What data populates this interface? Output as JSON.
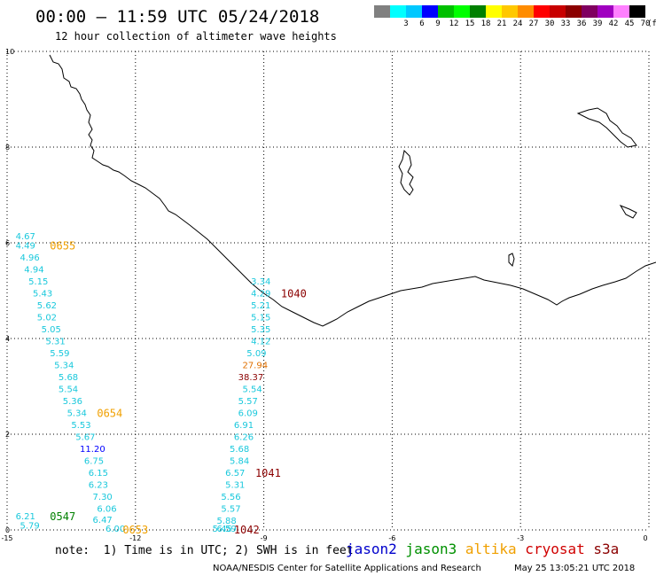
{
  "header": {
    "title": "00:00 – 11:59 UTC 05/24/2018",
    "subtitle": "12 hour collection of altimeter wave heights"
  },
  "color_scale": {
    "unit": "(ft)",
    "bins": [
      {
        "color": "#808080",
        "label": ""
      },
      {
        "color": "#00ffff",
        "label": "3"
      },
      {
        "color": "#00c8ff",
        "label": "6"
      },
      {
        "color": "#0000ff",
        "label": "9"
      },
      {
        "color": "#00c000",
        "label": "12"
      },
      {
        "color": "#00ff00",
        "label": "15"
      },
      {
        "color": "#008000",
        "label": "18"
      },
      {
        "color": "#ffff00",
        "label": "21"
      },
      {
        "color": "#ffc800",
        "label": "24"
      },
      {
        "color": "#ff8c00",
        "label": "27"
      },
      {
        "color": "#ff0000",
        "label": "30"
      },
      {
        "color": "#c80000",
        "label": "33"
      },
      {
        "color": "#8b0000",
        "label": "36"
      },
      {
        "color": "#800060",
        "label": "39"
      },
      {
        "color": "#a000c0",
        "label": "42"
      },
      {
        "color": "#ff80ff",
        "label": "45"
      },
      {
        "color": "#000000",
        "label": "70"
      }
    ]
  },
  "map": {
    "lon_range": [
      -15,
      0
    ],
    "lat_range": [
      0,
      10
    ],
    "x_ticks": [
      "-15",
      "-12",
      "-9",
      "-6",
      "-3",
      "0"
    ],
    "y_ticks": [
      "0",
      "2",
      "4",
      "6",
      "8",
      "10"
    ]
  },
  "wave_color": "#19c8dc",
  "tracks": [
    {
      "lon": -14.8,
      "lat": 6.15,
      "value": "4.67"
    },
    {
      "lon": -14.8,
      "lat": 5.95,
      "value": "4.49"
    },
    {
      "lon": -14.7,
      "lat": 5.7,
      "value": "4.96"
    },
    {
      "lon": -14.6,
      "lat": 5.45,
      "value": "4.94"
    },
    {
      "lon": -14.5,
      "lat": 5.2,
      "value": "5.15"
    },
    {
      "lon": -14.4,
      "lat": 4.95,
      "value": "5.43"
    },
    {
      "lon": -14.3,
      "lat": 4.7,
      "value": "5.62"
    },
    {
      "lon": -14.3,
      "lat": 4.45,
      "value": "5.02"
    },
    {
      "lon": -14.2,
      "lat": 4.2,
      "value": "5.05"
    },
    {
      "lon": -14.1,
      "lat": 3.95,
      "value": "5.31"
    },
    {
      "lon": -14.0,
      "lat": 3.7,
      "value": "5.59"
    },
    {
      "lon": -13.9,
      "lat": 3.45,
      "value": "5.34"
    },
    {
      "lon": -13.8,
      "lat": 3.2,
      "value": "5.68"
    },
    {
      "lon": -13.8,
      "lat": 2.95,
      "value": "5.54"
    },
    {
      "lon": -13.7,
      "lat": 2.7,
      "value": "5.36"
    },
    {
      "lon": -13.6,
      "lat": 2.45,
      "value": "5.34"
    },
    {
      "lon": -13.5,
      "lat": 2.2,
      "value": "5.53"
    },
    {
      "lon": -13.4,
      "lat": 1.95,
      "value": "5.67"
    },
    {
      "lon": -13.3,
      "lat": 1.7,
      "value": "11.20",
      "color": "#0000ff"
    },
    {
      "lon": -13.2,
      "lat": 1.45,
      "value": "6.75"
    },
    {
      "lon": -13.1,
      "lat": 1.2,
      "value": "6.15"
    },
    {
      "lon": -13.1,
      "lat": 0.95,
      "value": "6.23"
    },
    {
      "lon": -13.0,
      "lat": 0.7,
      "value": "7.30"
    },
    {
      "lon": -12.9,
      "lat": 0.45,
      "value": "6.06"
    },
    {
      "lon": -14.8,
      "lat": 0.3,
      "value": "6.21"
    },
    {
      "lon": -13.0,
      "lat": 0.22,
      "value": "6.47"
    },
    {
      "lon": -14.7,
      "lat": 0.1,
      "value": "5.79"
    },
    {
      "lon": -12.7,
      "lat": 0.0,
      "value": "6.00"
    },
    {
      "lon": -9.3,
      "lat": 5.2,
      "value": "3.34"
    },
    {
      "lon": -9.3,
      "lat": 4.95,
      "value": "4.29"
    },
    {
      "lon": -9.3,
      "lat": 4.7,
      "value": "5.21"
    },
    {
      "lon": -9.3,
      "lat": 4.45,
      "value": "5.15"
    },
    {
      "lon": -9.3,
      "lat": 4.2,
      "value": "5.35"
    },
    {
      "lon": -9.3,
      "lat": 3.95,
      "value": "4.12"
    },
    {
      "lon": -9.4,
      "lat": 3.7,
      "value": "5.09"
    },
    {
      "lon": -9.5,
      "lat": 3.45,
      "value": "27.94",
      "color": "#e07000"
    },
    {
      "lon": -9.6,
      "lat": 3.2,
      "value": "38.37",
      "color": "#8b0000"
    },
    {
      "lon": -9.5,
      "lat": 2.95,
      "value": "5.54"
    },
    {
      "lon": -9.6,
      "lat": 2.7,
      "value": "5.57"
    },
    {
      "lon": -9.6,
      "lat": 2.45,
      "value": "6.09"
    },
    {
      "lon": -9.7,
      "lat": 2.2,
      "value": "6.91"
    },
    {
      "lon": -9.7,
      "lat": 1.95,
      "value": "6.26"
    },
    {
      "lon": -9.8,
      "lat": 1.7,
      "value": "5.68"
    },
    {
      "lon": -9.8,
      "lat": 1.45,
      "value": "5.84"
    },
    {
      "lon": -9.9,
      "lat": 1.2,
      "value": "6.57"
    },
    {
      "lon": -9.9,
      "lat": 0.95,
      "value": "5.31"
    },
    {
      "lon": -10.0,
      "lat": 0.7,
      "value": "5.56"
    },
    {
      "lon": -10.0,
      "lat": 0.45,
      "value": "5.57"
    },
    {
      "lon": -10.1,
      "lat": 0.2,
      "value": "5.88"
    },
    {
      "lon": -10.1,
      "lat": -0.05,
      "value": "6.59"
    },
    {
      "lon": -10.2,
      "lat": -0.3,
      "value": "5.45"
    }
  ],
  "pass_labels": [
    {
      "text": "0655",
      "lon": -14.0,
      "lat": 5.95,
      "color": "#f0a000"
    },
    {
      "text": "0654",
      "lon": -12.9,
      "lat": 2.45,
      "color": "#f0a000"
    },
    {
      "text": "0547",
      "lon": -14.0,
      "lat": 0.3,
      "color": "#008000"
    },
    {
      "text": "0653",
      "lon": -12.3,
      "lat": 0.0,
      "color": "#f0a000"
    },
    {
      "text": "1040",
      "lon": -8.6,
      "lat": 4.95,
      "color": "#8b0000"
    },
    {
      "text": "1041",
      "lon": -9.2,
      "lat": 1.2,
      "color": "#8b0000"
    },
    {
      "text": "1042",
      "lon": -9.7,
      "lat": -0.3,
      "color": "#8b0000"
    }
  ],
  "footer": {
    "note": "note:  1) Time is in UTC; 2) SWH is in feet",
    "legend": [
      {
        "name": "jason2",
        "color": "#0000cc"
      },
      {
        "name": "jason3",
        "color": "#009000"
      },
      {
        "name": "altika",
        "color": "#f0a000"
      },
      {
        "name": "cryosat",
        "color": "#d00000"
      },
      {
        "name": "s3a",
        "color": "#8b0000"
      }
    ],
    "credit": "NOAA/NESDIS Center for Satellite Applications and Research",
    "timestamp": "May 25 13:05:21 UTC 2018"
  }
}
